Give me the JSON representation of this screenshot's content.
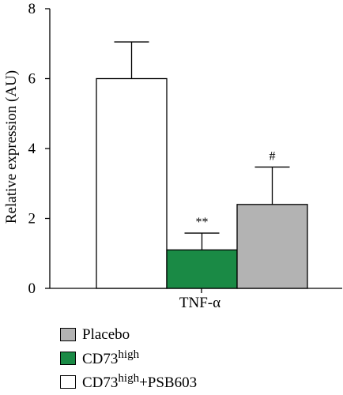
{
  "chart_data": {
    "type": "bar",
    "title": "",
    "xlabel": "",
    "ylabel": "Relative expression (AU)",
    "ylim": [
      0,
      8
    ],
    "yticks": [
      "0",
      "2",
      "4",
      "6",
      "8"
    ],
    "categories": [
      "TNF-α"
    ],
    "series": [
      {
        "name": "CD73high+PSB603",
        "values": [
          6.0
        ],
        "error": [
          1.05
        ],
        "color": "#ffffff",
        "annotation": ""
      },
      {
        "name": "CD73high",
        "values": [
          1.1
        ],
        "error": [
          0.48
        ],
        "color": "#1a8a45",
        "annotation": "**"
      },
      {
        "name": "Placebo",
        "values": [
          2.4
        ],
        "error": [
          1.07
        ],
        "color": "#b3b3b3",
        "annotation": "#"
      }
    ],
    "legend": {
      "placement": "bottom-left",
      "items": [
        {
          "base": "Placebo",
          "sup": "",
          "suffix": "",
          "color": "#b3b3b3"
        },
        {
          "base": "CD73",
          "sup": "high",
          "suffix": "",
          "color": "#1a8a45"
        },
        {
          "base": "CD73",
          "sup": "high",
          "suffix": "+PSB603",
          "color": "#ffffff"
        }
      ]
    }
  }
}
